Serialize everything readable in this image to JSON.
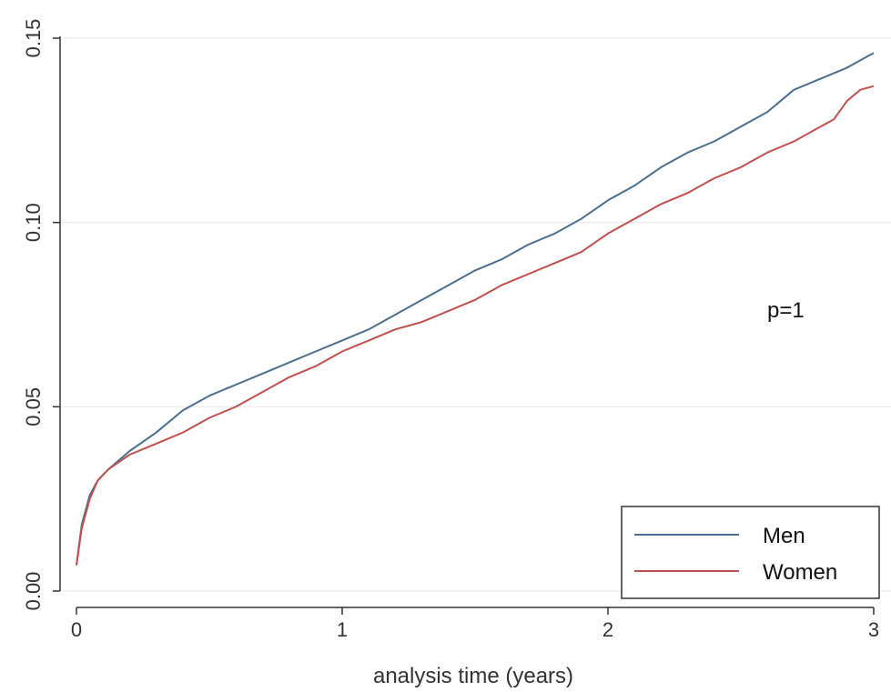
{
  "chart_data": {
    "type": "line",
    "title": "",
    "xlabel": "analysis time (years)",
    "ylabel": "",
    "xlim": [
      0,
      3
    ],
    "ylim": [
      0,
      0.15
    ],
    "xticks": [
      {
        "value": 0,
        "label": "0"
      },
      {
        "value": 1,
        "label": "1"
      },
      {
        "value": 2,
        "label": "2"
      },
      {
        "value": 3,
        "label": "3"
      }
    ],
    "yticks": [
      {
        "value": 0,
        "label": "0.00"
      },
      {
        "value": 0.05,
        "label": "0.05"
      },
      {
        "value": 0.1,
        "label": "0.10"
      },
      {
        "value": 0.15,
        "label": "0.15"
      }
    ],
    "grid": "horizontal",
    "legend_position": "bottom-right",
    "annotation": "p=1",
    "series": [
      {
        "name": "Men",
        "color": "#4a6f8e",
        "points": [
          [
            0,
            0.007
          ],
          [
            0.02,
            0.018
          ],
          [
            0.05,
            0.026
          ],
          [
            0.08,
            0.03
          ],
          [
            0.12,
            0.033
          ],
          [
            0.2,
            0.038
          ],
          [
            0.3,
            0.043
          ],
          [
            0.4,
            0.049
          ],
          [
            0.5,
            0.053
          ],
          [
            0.6,
            0.056
          ],
          [
            0.7,
            0.059
          ],
          [
            0.8,
            0.062
          ],
          [
            0.9,
            0.065
          ],
          [
            1.0,
            0.068
          ],
          [
            1.1,
            0.071
          ],
          [
            1.2,
            0.075
          ],
          [
            1.3,
            0.079
          ],
          [
            1.4,
            0.083
          ],
          [
            1.5,
            0.087
          ],
          [
            1.6,
            0.09
          ],
          [
            1.7,
            0.094
          ],
          [
            1.8,
            0.097
          ],
          [
            1.9,
            0.101
          ],
          [
            2.0,
            0.106
          ],
          [
            2.1,
            0.11
          ],
          [
            2.2,
            0.115
          ],
          [
            2.3,
            0.119
          ],
          [
            2.4,
            0.122
          ],
          [
            2.5,
            0.126
          ],
          [
            2.6,
            0.13
          ],
          [
            2.7,
            0.136
          ],
          [
            2.8,
            0.139
          ],
          [
            2.9,
            0.142
          ],
          [
            2.95,
            0.144
          ],
          [
            3.0,
            0.146
          ]
        ]
      },
      {
        "name": "Women",
        "color": "#c0504d",
        "points": [
          [
            0,
            0.007
          ],
          [
            0.02,
            0.017
          ],
          [
            0.05,
            0.025
          ],
          [
            0.08,
            0.03
          ],
          [
            0.12,
            0.033
          ],
          [
            0.2,
            0.037
          ],
          [
            0.3,
            0.04
          ],
          [
            0.4,
            0.043
          ],
          [
            0.5,
            0.047
          ],
          [
            0.6,
            0.05
          ],
          [
            0.7,
            0.054
          ],
          [
            0.8,
            0.058
          ],
          [
            0.9,
            0.061
          ],
          [
            1.0,
            0.065
          ],
          [
            1.1,
            0.068
          ],
          [
            1.2,
            0.071
          ],
          [
            1.3,
            0.073
          ],
          [
            1.4,
            0.076
          ],
          [
            1.5,
            0.079
          ],
          [
            1.6,
            0.083
          ],
          [
            1.7,
            0.086
          ],
          [
            1.8,
            0.089
          ],
          [
            1.9,
            0.092
          ],
          [
            2.0,
            0.097
          ],
          [
            2.1,
            0.101
          ],
          [
            2.2,
            0.105
          ],
          [
            2.3,
            0.108
          ],
          [
            2.4,
            0.112
          ],
          [
            2.5,
            0.115
          ],
          [
            2.6,
            0.119
          ],
          [
            2.7,
            0.122
          ],
          [
            2.8,
            0.126
          ],
          [
            2.85,
            0.128
          ],
          [
            2.9,
            0.133
          ],
          [
            2.95,
            0.136
          ],
          [
            3.0,
            0.137
          ]
        ]
      }
    ]
  }
}
